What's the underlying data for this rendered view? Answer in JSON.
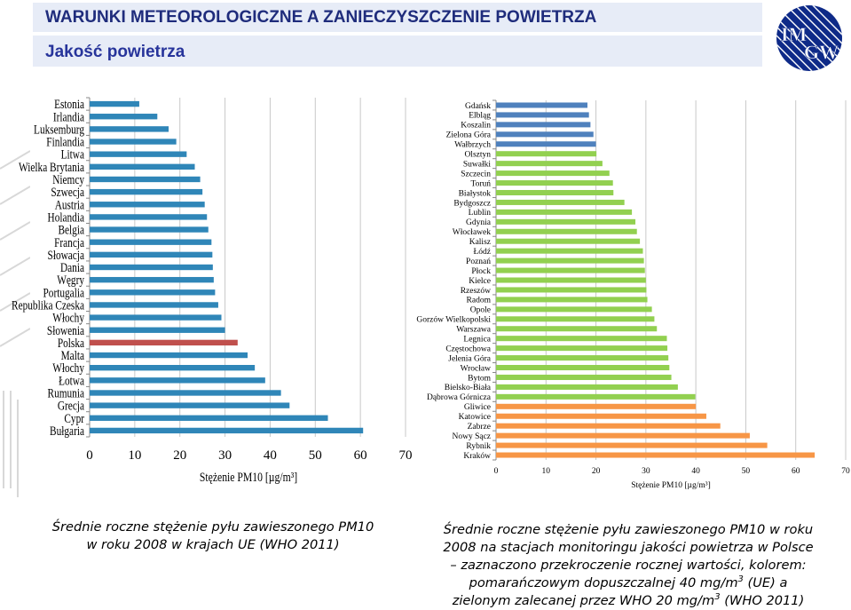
{
  "header": {
    "title": "WARUNKI METEOROLOGICZNE A ZANIECZYSZCZENIE POWIETRZA",
    "subtitle": "Jakość powietrza"
  },
  "logo": {
    "text_top": "IM",
    "text_bottom": "GW",
    "color": "#0e2a88"
  },
  "chart_data": [
    {
      "type": "bar",
      "orientation": "horizontal",
      "categories": [
        "Estonia",
        "Irlandia",
        "Luksemburg",
        "Finlandia",
        "Litwa",
        "Wielka Brytania",
        "Niemcy",
        "Szwecja",
        "Austria",
        "Holandia",
        "Belgia",
        "Francja",
        "Słowacja",
        "Dania",
        "Węgry",
        "Portugalia",
        "Republika Czeska",
        "Włochy",
        "Słowenia",
        "Polska",
        "Malta",
        "Włochy",
        "Łotwa",
        "Rumunia",
        "Grecja",
        "Cypr",
        "Bułgaria"
      ],
      "values": [
        11,
        15,
        17.5,
        19.2,
        21.5,
        23.3,
        24.5,
        25,
        25.5,
        26,
        26.3,
        27,
        27.2,
        27.3,
        27.5,
        27.8,
        28.5,
        29.2,
        30,
        32.8,
        35,
        36.6,
        38.9,
        42.4,
        44.3,
        52.8,
        60.6
      ],
      "highlight_category_index": 19,
      "colors": {
        "default": "#2f86b8",
        "highlight": "#c0504d"
      },
      "xlim": [
        0,
        70
      ],
      "xticks": [
        "0",
        "10",
        "20",
        "30",
        "40",
        "50",
        "60",
        "70"
      ],
      "xlabel": "Stężenie PM10 [µg/m³]",
      "grid": true
    },
    {
      "type": "bar",
      "orientation": "horizontal",
      "categories": [
        "Gdańsk",
        "Elbląg",
        "Koszalin",
        "Zielona Góra",
        "Wałbrzych",
        "Olsztyn",
        "Suwałki",
        "Szczecin",
        "Toruń",
        "Białystok",
        "Bydgoszcz",
        "Lublin",
        "Gdynia",
        "Włocławek",
        "Kalisz",
        "Łódź",
        "Poznań",
        "Płock",
        "Kielce",
        "Rzeszów",
        "Radom",
        "Opole",
        "Gorzów Wielkopolski",
        "Warszawa",
        "Legnica",
        "Częstochowa",
        "Jelenia Góra",
        "Wrocław",
        "Bytom",
        "Bielsko-Biała",
        "Dąbrowa Górnicza",
        "Gliwice",
        "Katowice",
        "Zabrze",
        "Nowy Sącz",
        "Rybnik",
        "Kraków"
      ],
      "values": [
        18.3,
        18.6,
        18.9,
        19.5,
        20,
        20.1,
        21.3,
        22.7,
        23.4,
        23.5,
        25.7,
        27.2,
        27.9,
        28.2,
        28.8,
        29.4,
        29.6,
        29.8,
        30,
        30.1,
        30.3,
        31.2,
        31.7,
        32.2,
        34.2,
        34.3,
        34.5,
        34.7,
        35.1,
        36.4,
        39.9,
        40,
        42.1,
        44.9,
        50.8,
        54.3,
        63.8
      ],
      "group_colors": {
        "below_who": "#4f81bd",
        "above_who": "#92d050",
        "above_eu": "#f79646"
      },
      "thresholds": {
        "who": 20,
        "eu": 40
      },
      "xlim": [
        0,
        70
      ],
      "xticks": [
        "0",
        "10",
        "20",
        "30",
        "40",
        "50",
        "60",
        "70"
      ],
      "xlabel": "Stężenie PM10 [µg/m³]",
      "grid": true
    }
  ],
  "captions": {
    "left_line1": "Średnie roczne stężenie pyłu zawieszonego PM10",
    "left_line2": "w roku 2008 w krajach UE (WHO 2011)",
    "right_line1": "Średnie roczne stężenie pyłu zawieszonego PM10 w roku",
    "right_line2": "2008 na stacjach monitoringu jakości powietrza w Polsce",
    "right_line3": "– zaznaczono przekroczenie rocznej wartości, kolorem:",
    "right_line4_a": "pomarańczowym dopuszczalnej 40 mg/m",
    "right_line4_sup": "3",
    "right_line4_b": " (UE) a",
    "right_line5_a": "zielonym zalecanej przez WHO 20 mg/m",
    "right_line5_sup": "3",
    "right_line5_b": " (WHO 2011)"
  }
}
